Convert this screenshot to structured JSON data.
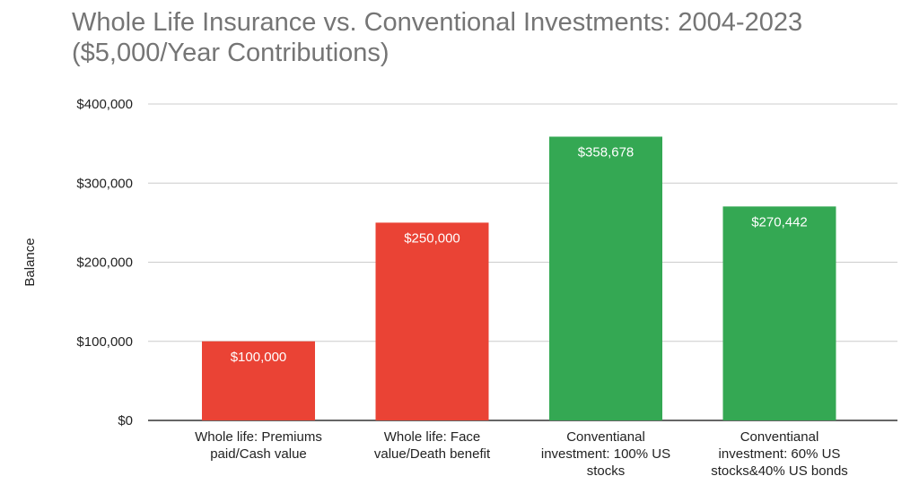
{
  "chart_data": {
    "type": "bar",
    "title_lines": [
      "Whole Life Insurance vs. Conventional Investments: 2004-2023",
      "($5,000/Year Contributions)"
    ],
    "ylabel": "Balance",
    "xlabel": "",
    "ylim": [
      0,
      400000
    ],
    "grid": true,
    "yticks": [
      0,
      100000,
      200000,
      300000,
      400000
    ],
    "ytick_labels": [
      "$0",
      "$100,000",
      "$200,000",
      "$300,000",
      "$400,000"
    ],
    "categories": [
      [
        "Whole life: Premiums",
        "paid/Cash value"
      ],
      [
        "Whole life: Face",
        "value/Death benefit"
      ],
      [
        "Conventianal",
        "investment: 100% US",
        "stocks"
      ],
      [
        "Conventianal",
        "investment: 60% US",
        "stocks&40% US bonds"
      ]
    ],
    "values": [
      100000,
      250000,
      358678,
      270442
    ],
    "data_labels": [
      "$100,000",
      "$250,000",
      "$358,678",
      "$270,442"
    ],
    "colors": [
      "#ea4335",
      "#ea4335",
      "#34a853",
      "#34a853"
    ]
  }
}
